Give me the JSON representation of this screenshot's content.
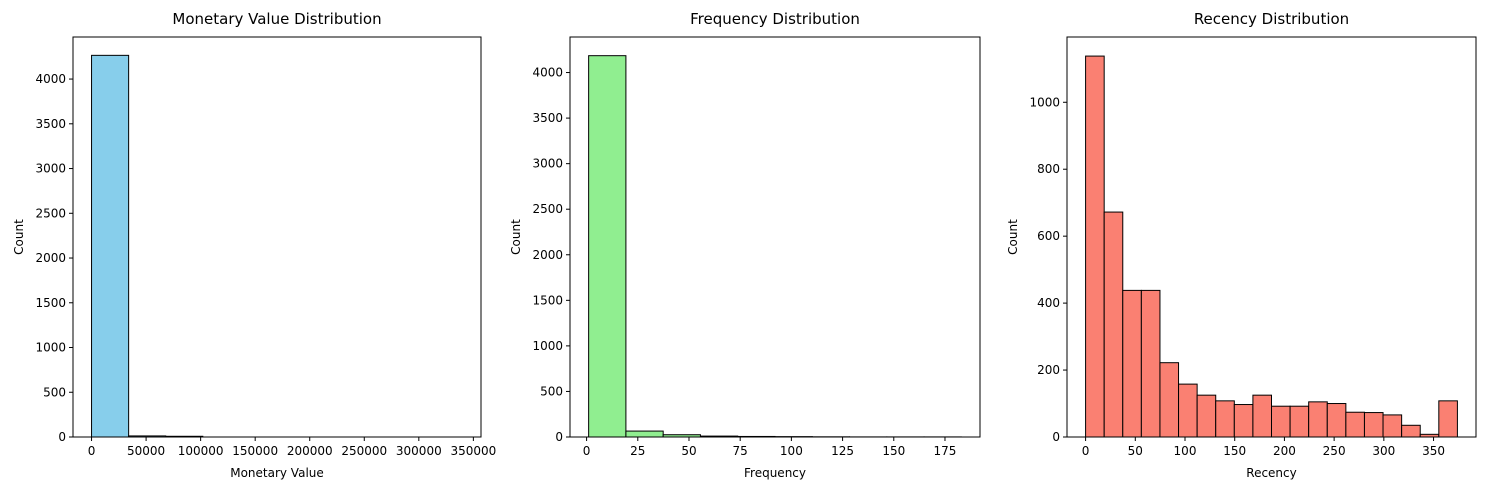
{
  "chart_data": [
    {
      "type": "bar",
      "title": "Monetary Value Distribution",
      "xlabel": "Monetary Value",
      "ylabel": "Count",
      "color": "#87ceeb",
      "edgecolor": "#000000",
      "bin_edges": [
        0,
        34000,
        68000,
        102000,
        136000,
        170000,
        204000,
        238000,
        272000,
        306000,
        340000
      ],
      "values": [
        4265,
        12,
        8,
        0,
        0,
        0,
        0,
        0,
        0,
        0
      ],
      "xlim": [
        -17000,
        357000
      ],
      "ylim": [
        0,
        4470
      ],
      "xticks": [
        0,
        50000,
        100000,
        150000,
        200000,
        250000,
        300000,
        350000
      ],
      "yticks": [
        0,
        500,
        1000,
        1500,
        2000,
        2500,
        3000,
        3500,
        4000
      ]
    },
    {
      "type": "bar",
      "title": "Frequency Distribution",
      "xlabel": "Frequency",
      "ylabel": "Count",
      "color": "#90ee90",
      "edgecolor": "#000000",
      "bin_edges": [
        1,
        19.2,
        37.4,
        55.6,
        73.8,
        92,
        110.2,
        128.4,
        146.6,
        164.8,
        183
      ],
      "values": [
        4185,
        65,
        25,
        10,
        6,
        4,
        2,
        1,
        1,
        1
      ],
      "xlim": [
        -8.1,
        192.1
      ],
      "ylim": [
        0,
        4390
      ],
      "xticks": [
        0,
        25,
        50,
        75,
        100,
        125,
        150,
        175
      ],
      "yticks": [
        0,
        500,
        1000,
        1500,
        2000,
        2500,
        3000,
        3500,
        4000
      ]
    },
    {
      "type": "bar",
      "title": "Recency Distribution",
      "xlabel": "Recency",
      "ylabel": "Count",
      "color": "#fa8072",
      "edgecolor": "#000000",
      "bin_edges": [
        0,
        18.7,
        37.4,
        56.1,
        74.8,
        93.5,
        112.2,
        130.9,
        149.6,
        168.3,
        187,
        205.7,
        224.4,
        243.1,
        261.8,
        280.5,
        299.2,
        317.9,
        336.6,
        355.3,
        374
      ],
      "values": [
        1138,
        672,
        438,
        438,
        222,
        158,
        125,
        108,
        97,
        125,
        92,
        92,
        105,
        100,
        74,
        73,
        66,
        35,
        8,
        108
      ],
      "xlim": [
        -18.7,
        392.7
      ],
      "ylim": [
        0,
        1195
      ],
      "xticks": [
        0,
        50,
        100,
        150,
        200,
        250,
        300,
        350
      ],
      "yticks": [
        0,
        200,
        400,
        600,
        800,
        1000
      ]
    }
  ]
}
